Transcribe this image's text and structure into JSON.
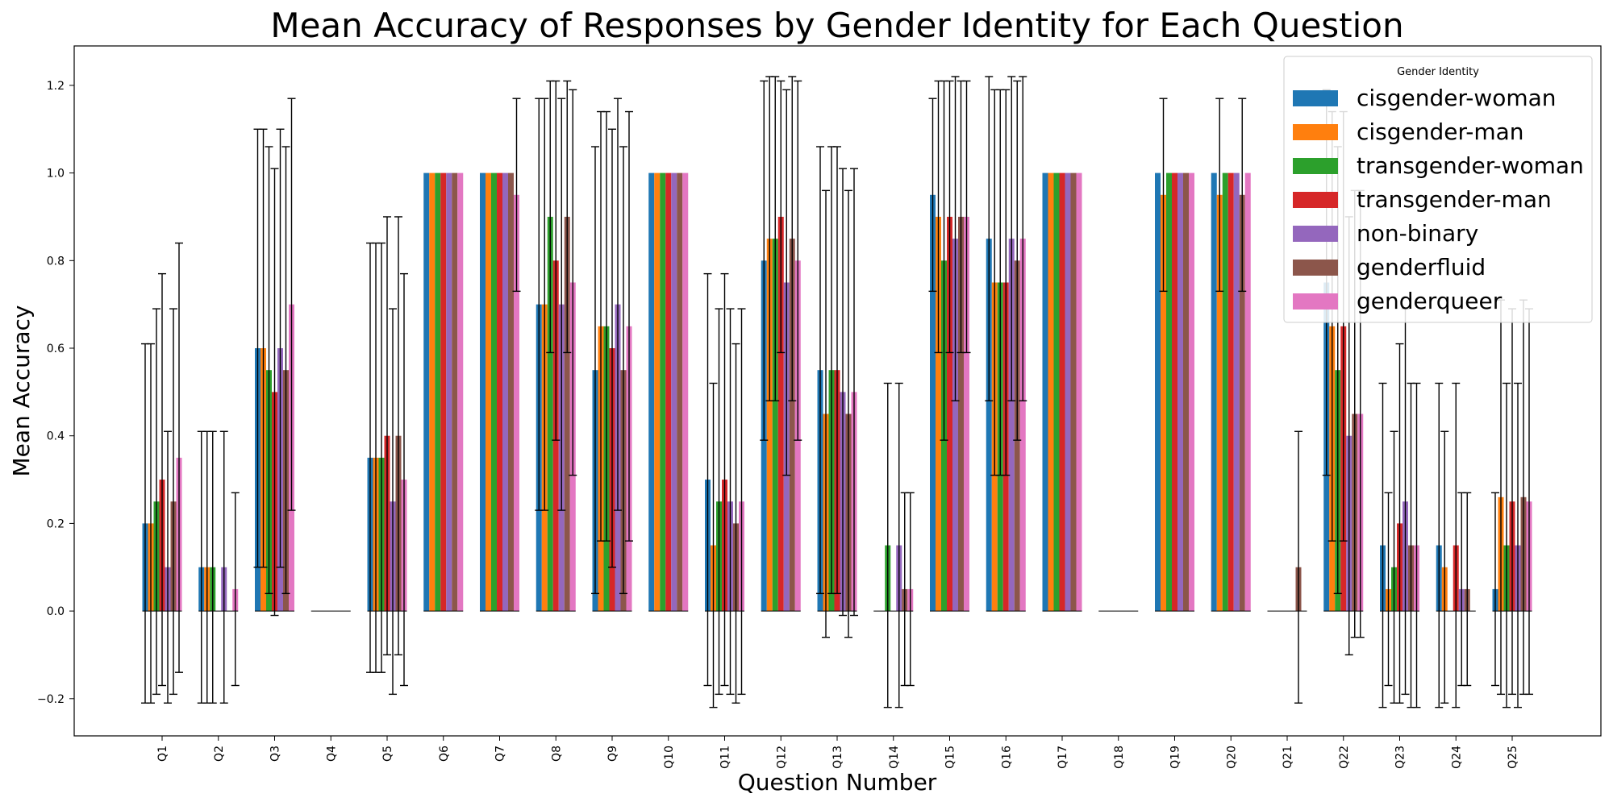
{
  "chart_data": {
    "type": "bar",
    "title": "Mean Accuracy of Responses by Gender Identity for Each Question",
    "xlabel": "Question Number",
    "ylabel": "Mean Accuracy",
    "ylim": [
      -0.285,
      1.29
    ],
    "yticks": [
      -0.2,
      0.0,
      0.2,
      0.4,
      0.6,
      0.8,
      1.0,
      1.2
    ],
    "ytick_labels": [
      "−0.2",
      "0.0",
      "0.2",
      "0.4",
      "0.6",
      "0.8",
      "1.0",
      "1.2"
    ],
    "grid": false,
    "legend": {
      "title": "Gender Identity",
      "position": "top-right"
    },
    "categories": [
      "Q1",
      "Q2",
      "Q3",
      "Q4",
      "Q5",
      "Q6",
      "Q7",
      "Q8",
      "Q9",
      "Q10",
      "Q11",
      "Q12",
      "Q13",
      "Q14",
      "Q15",
      "Q16",
      "Q17",
      "Q18",
      "Q19",
      "Q20",
      "Q21",
      "Q22",
      "Q23",
      "Q24",
      "Q25"
    ],
    "series": [
      {
        "name": "cisgender-woman",
        "color": "#1f77b4",
        "values": [
          0.2,
          0.1,
          0.6,
          0.0,
          0.35,
          1.0,
          1.0,
          0.7,
          0.55,
          1.0,
          0.3,
          0.8,
          0.55,
          0.0,
          0.95,
          0.85,
          1.0,
          0.0,
          1.0,
          1.0,
          0.0,
          0.75,
          0.15,
          0.15,
          0.05
        ],
        "errors": [
          0.41,
          0.31,
          0.5,
          0.0,
          0.49,
          0.0,
          0.0,
          0.47,
          0.51,
          0.0,
          0.47,
          0.41,
          0.51,
          0.0,
          0.22,
          0.37,
          0.0,
          0.0,
          0.0,
          0.0,
          0.0,
          0.44,
          0.37,
          0.37,
          0.22
        ]
      },
      {
        "name": "cisgender-man",
        "color": "#ff7f0e",
        "values": [
          0.2,
          0.1,
          0.6,
          0.0,
          0.35,
          1.0,
          1.0,
          0.7,
          0.65,
          1.0,
          0.15,
          0.85,
          0.45,
          0.0,
          0.9,
          0.75,
          1.0,
          0.0,
          0.95,
          0.95,
          0.0,
          0.65,
          0.05,
          0.1,
          0.26
        ],
        "errors": [
          0.41,
          0.31,
          0.5,
          0.0,
          0.49,
          0.0,
          0.0,
          0.47,
          0.49,
          0.0,
          0.37,
          0.37,
          0.51,
          0.0,
          0.31,
          0.44,
          0.0,
          0.0,
          0.22,
          0.22,
          0.0,
          0.49,
          0.22,
          0.31,
          0.45
        ]
      },
      {
        "name": "transgender-woman",
        "color": "#2ca02c",
        "values": [
          0.25,
          0.1,
          0.55,
          0.0,
          0.35,
          1.0,
          1.0,
          0.9,
          0.65,
          1.0,
          0.25,
          0.85,
          0.55,
          0.15,
          0.8,
          0.75,
          1.0,
          0.0,
          1.0,
          1.0,
          0.0,
          0.55,
          0.1,
          0.0,
          0.15
        ],
        "errors": [
          0.44,
          0.31,
          0.51,
          0.0,
          0.49,
          0.0,
          0.0,
          0.31,
          0.49,
          0.0,
          0.44,
          0.37,
          0.51,
          0.37,
          0.41,
          0.44,
          0.0,
          0.0,
          0.0,
          0.0,
          0.0,
          0.51,
          0.31,
          0.0,
          0.37
        ]
      },
      {
        "name": "transgender-man",
        "color": "#d62728",
        "values": [
          0.3,
          0.0,
          0.5,
          0.0,
          0.4,
          1.0,
          1.0,
          0.8,
          0.6,
          1.0,
          0.3,
          0.9,
          0.55,
          0.0,
          0.9,
          0.75,
          1.0,
          0.0,
          1.0,
          1.0,
          0.0,
          0.65,
          0.2,
          0.15,
          0.25
        ],
        "errors": [
          0.47,
          0.0,
          0.51,
          0.0,
          0.5,
          0.0,
          0.0,
          0.41,
          0.5,
          0.0,
          0.47,
          0.31,
          0.51,
          0.0,
          0.31,
          0.44,
          0.0,
          0.0,
          0.0,
          0.0,
          0.0,
          0.49,
          0.41,
          0.37,
          0.44
        ]
      },
      {
        "name": "non-binary",
        "color": "#9467bd",
        "values": [
          0.1,
          0.1,
          0.6,
          0.0,
          0.25,
          1.0,
          1.0,
          0.7,
          0.7,
          1.0,
          0.25,
          0.75,
          0.5,
          0.15,
          0.85,
          0.85,
          1.0,
          0.0,
          1.0,
          1.0,
          0.0,
          0.4,
          0.25,
          0.05,
          0.15
        ],
        "errors": [
          0.31,
          0.31,
          0.5,
          0.0,
          0.44,
          0.0,
          0.0,
          0.47,
          0.47,
          0.0,
          0.44,
          0.44,
          0.51,
          0.37,
          0.37,
          0.37,
          0.0,
          0.0,
          0.0,
          0.0,
          0.0,
          0.5,
          0.44,
          0.22,
          0.37
        ]
      },
      {
        "name": "genderfluid",
        "color": "#8c564b",
        "values": [
          0.25,
          0.0,
          0.55,
          0.0,
          0.4,
          1.0,
          1.0,
          0.9,
          0.55,
          1.0,
          0.2,
          0.85,
          0.45,
          0.05,
          0.9,
          0.8,
          1.0,
          0.0,
          1.0,
          0.95,
          0.1,
          0.45,
          0.15,
          0.05,
          0.26
        ],
        "errors": [
          0.44,
          0.0,
          0.51,
          0.0,
          0.5,
          0.0,
          0.0,
          0.31,
          0.51,
          0.0,
          0.41,
          0.37,
          0.51,
          0.22,
          0.31,
          0.41,
          0.0,
          0.0,
          0.0,
          0.22,
          0.31,
          0.51,
          0.37,
          0.22,
          0.45
        ]
      },
      {
        "name": "genderqueer",
        "color": "#e377c2",
        "values": [
          0.35,
          0.05,
          0.7,
          0.0,
          0.3,
          1.0,
          0.95,
          0.75,
          0.65,
          1.0,
          0.25,
          0.8,
          0.5,
          0.05,
          0.9,
          0.85,
          1.0,
          0.0,
          1.0,
          1.0,
          0.0,
          0.45,
          0.15,
          0.0,
          0.25
        ],
        "errors": [
          0.49,
          0.22,
          0.47,
          0.0,
          0.47,
          0.0,
          0.22,
          0.44,
          0.49,
          0.0,
          0.44,
          0.41,
          0.51,
          0.22,
          0.31,
          0.37,
          0.0,
          0.0,
          0.0,
          0.0,
          0.0,
          0.51,
          0.37,
          0.0,
          0.44
        ]
      }
    ]
  }
}
